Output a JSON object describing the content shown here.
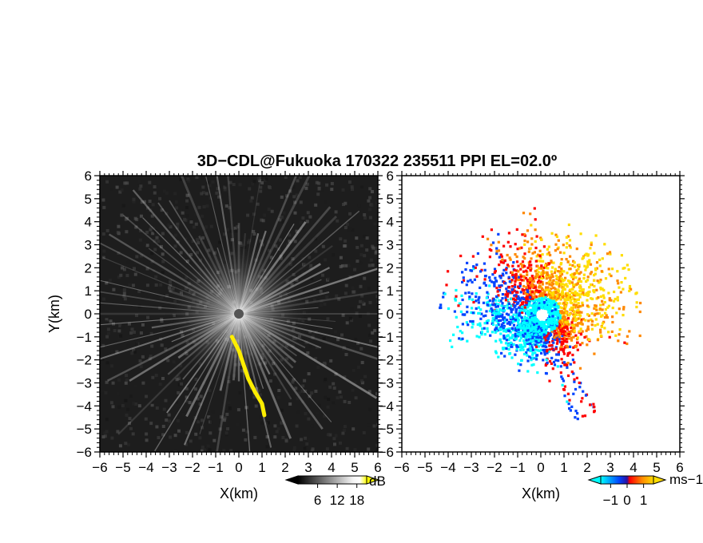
{
  "figure": {
    "title": "3D−CDL@Fukuoka 170322 235511 PPI EL=02.0º"
  },
  "chart_data": [
    {
      "type": "heatmap",
      "product": "intensity",
      "xlabel": "X(km)",
      "ylabel": "Y(km)",
      "xlim": [
        -6,
        6
      ],
      "ylim": [
        -6,
        6
      ],
      "xticks": [
        "−6",
        "−5",
        "−4",
        "−3",
        "−2",
        "−1",
        "0",
        "1",
        "2",
        "3",
        "4",
        "5",
        "6"
      ],
      "yticks": [
        "−6",
        "−5",
        "−4",
        "−3",
        "−2",
        "−1",
        "0",
        "1",
        "2",
        "3",
        "4",
        "5",
        "6"
      ],
      "grid": false,
      "colorbar": {
        "unit": "dB",
        "ticks": [
          "6",
          "12",
          "18"
        ],
        "tick_values": [
          6,
          12,
          18
        ],
        "range": [
          0,
          21
        ],
        "colors": [
          "#000000",
          "#ffffff",
          "#ffff00"
        ]
      },
      "features": {
        "yellow_band_points": [
          [
            -0.3,
            -1.0
          ],
          [
            0.0,
            -1.6
          ],
          [
            0.2,
            -2.2
          ],
          [
            0.4,
            -2.8
          ],
          [
            0.7,
            -3.4
          ],
          [
            1.0,
            -3.9
          ],
          [
            1.1,
            -4.4
          ]
        ]
      }
    },
    {
      "type": "heatmap",
      "product": "doppler velocity",
      "xlabel": "X(km)",
      "xlim": [
        -6,
        6
      ],
      "ylim": [
        -6,
        6
      ],
      "xticks": [
        "−6",
        "−5",
        "−4",
        "−3",
        "−2",
        "−1",
        "0",
        "1",
        "2",
        "3",
        "4",
        "5",
        "6"
      ],
      "yticks": [
        "−6",
        "−5",
        "−4",
        "−3",
        "−2",
        "−1",
        "0",
        "1",
        "2",
        "3",
        "4",
        "5",
        "6"
      ],
      "grid": false,
      "colorbar": {
        "unit": "ms−1",
        "ticks": [
          "−1",
          "0",
          "1"
        ],
        "tick_values": [
          -1,
          0,
          1
        ],
        "range": [
          -1.6,
          1.6
        ],
        "colors": [
          "#00ffff",
          "#0044ff",
          "#ff0000",
          "#ff8800",
          "#ffdd00"
        ]
      }
    }
  ]
}
